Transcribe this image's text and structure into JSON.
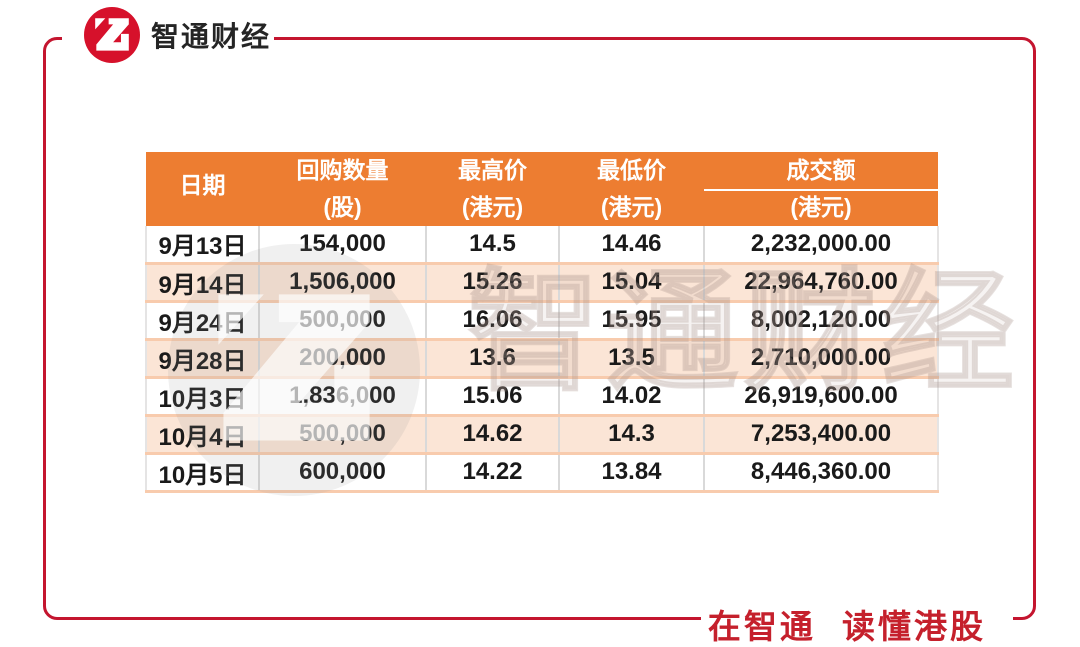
{
  "brand": {
    "name": "智通财经",
    "logo_icon": "zhitong-z-logo"
  },
  "slogan": "在智通 读懂港股",
  "watermark": {
    "text": "智通财经",
    "logo_icon": "zhitong-z-logo"
  },
  "colors": {
    "frame_red": "#C4152F",
    "logo_red": "#D6112B",
    "slogan_red": "#C5202C",
    "header_orange": "#ED7D31",
    "row_peach": "#FBE5D6",
    "grid_orange": "#F8CBAD",
    "grid_gray": "#D9D9D9",
    "text_black": "#1A1A1A",
    "header_text": "#FFFFFF"
  },
  "chart_data": {
    "type": "table",
    "columns": [
      {
        "label": "日期",
        "unit": ""
      },
      {
        "label": "回购数量",
        "unit": "(股)"
      },
      {
        "label": "最高价",
        "unit": "(港元)"
      },
      {
        "label": "最低价",
        "unit": "(港元)"
      },
      {
        "label": "成交额",
        "unit": "(港元)"
      }
    ],
    "rows": [
      [
        "9月13日",
        "154,000",
        "14.5",
        "14.46",
        "2,232,000.00"
      ],
      [
        "9月14日",
        "1,506,000",
        "15.26",
        "15.04",
        "22,964,760.00"
      ],
      [
        "9月24日",
        "500,000",
        "16.06",
        "15.95",
        "8,002,120.00"
      ],
      [
        "9月28日",
        "200,000",
        "13.6",
        "13.5",
        "2,710,000.00"
      ],
      [
        "10月3日",
        "1,836,000",
        "15.06",
        "14.02",
        "26,919,600.00"
      ],
      [
        "10月4日",
        "500,000",
        "14.62",
        "14.3",
        "7,253,400.00"
      ],
      [
        "10月5日",
        "600,000",
        "14.22",
        "13.84",
        "8,446,360.00"
      ]
    ]
  }
}
